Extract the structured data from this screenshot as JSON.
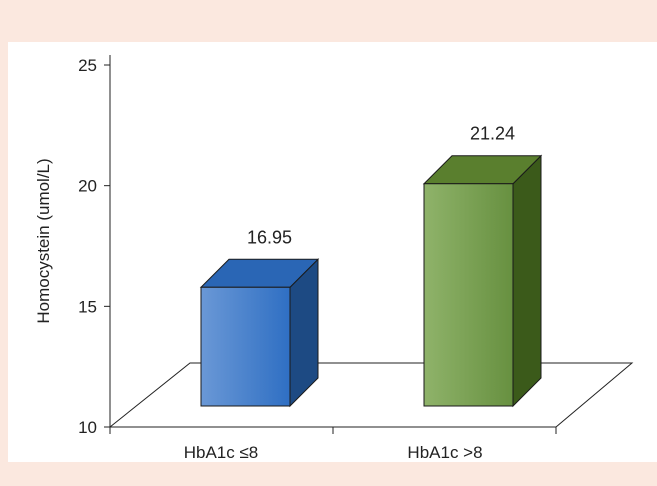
{
  "chart_data": {
    "type": "bar",
    "categories": [
      "HbA1c ≤8",
      "HbA1c >8"
    ],
    "values": [
      16.95,
      21.24
    ],
    "data_labels": [
      "16.95",
      "21.24"
    ],
    "title": "",
    "xlabel": "",
    "ylabel": "Homocystein (umol/L)",
    "ylim": [
      10,
      25
    ],
    "yticks": [
      "10",
      "15",
      "20",
      "25"
    ],
    "style": "3d-bar",
    "grid": false,
    "legend": "none",
    "colors": {
      "background": "#fbe8df",
      "plot_area": "#ffffff",
      "bar1_front_light": "#6a98d6",
      "bar1_front_dark": "#2f6fc3",
      "bar1_top": "#2a66b5",
      "bar1_side": "#1d4a83",
      "bar2_front_light": "#8fb36a",
      "bar2_front_dark": "#679040",
      "bar2_top": "#5a7f2e",
      "bar2_side": "#3b5a1a"
    }
  }
}
